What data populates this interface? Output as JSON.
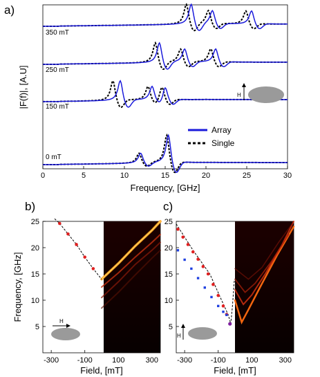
{
  "panel_a": {
    "label": "a)",
    "xlabel": "Frequency, [GHz]",
    "ylabel": "|F(f)|, [A.U]",
    "xticks": [
      "0",
      "5",
      "10",
      "15",
      "20",
      "25",
      "30"
    ],
    "traces": [
      {
        "field": "350 mT",
        "peaks_array": [
          18.2,
          20.8,
          25.6
        ],
        "peaks_single": [
          17.6,
          20.3,
          24.9
        ]
      },
      {
        "field": "250 mT",
        "peaks_array": [
          14.3,
          17.4,
          21.2
        ],
        "peaks_single": [
          13.8,
          16.9,
          20.6
        ]
      },
      {
        "field": "150 mT",
        "peaks_array": [
          9.5,
          13.4,
          15.0
        ],
        "peaks_single": [
          8.6,
          12.9,
          14.6
        ]
      },
      {
        "field": "0 mT",
        "peaks_array": [
          12.0,
          15.4
        ],
        "peaks_single": [
          11.8,
          15.2
        ]
      }
    ],
    "legend": {
      "array": "Array",
      "single": "Single"
    },
    "inset": {
      "field_label": "H",
      "field_direction": "up"
    },
    "colors": {
      "array": "#1a1adb",
      "single": "#000000"
    }
  },
  "panel_b": {
    "label": "b)",
    "ylabel": "Frequency, [GHz]",
    "xlabel": "Field, [mT]",
    "xticks": [
      "-300",
      "-100",
      "100",
      "300"
    ],
    "yticks": [
      "5",
      "10",
      "15",
      "20",
      "25"
    ],
    "inset": {
      "field_label": "H",
      "field_direction": "right"
    }
  },
  "panel_c": {
    "label": "c)",
    "xlabel": "Field, [mT]",
    "xticks": [
      "-300",
      "-100",
      "100",
      "300"
    ],
    "yticks": [
      "5",
      "10",
      "15",
      "20",
      "25"
    ],
    "inset": {
      "field_label": "H",
      "field_direction": "up"
    }
  },
  "chart_data": [
    {
      "type": "line",
      "xlabel": "Frequency, [GHz]",
      "ylabel": "|F(f)|, [A.U]",
      "xlim": [
        0,
        30
      ],
      "series": [
        {
          "name": "Array"
        },
        {
          "name": "Single"
        }
      ]
    },
    {
      "type": "scatter",
      "xlabel": "Field, [mT]",
      "ylabel": "Frequency, [GHz]",
      "xlim": [
        -350,
        350
      ],
      "ylim": [
        0,
        25
      ],
      "points": [
        {
          "x": -250,
          "y": 24.6
        },
        {
          "x": -200,
          "y": 22.6
        },
        {
          "x": -150,
          "y": 20.6
        },
        {
          "x": -100,
          "y": 18.2
        },
        {
          "x": -50,
          "y": 16.0
        }
      ]
    },
    {
      "type": "scatter",
      "xlabel": "Field, [mT]",
      "ylabel": "Frequency, [GHz]",
      "xlim": [
        -350,
        350
      ],
      "ylim": [
        0,
        25
      ],
      "series": [
        {
          "color": "#e02020",
          "x": [
            -340,
            -310,
            -280,
            -250,
            -220,
            -190,
            -160,
            -130,
            -100,
            -70,
            -50
          ],
          "y": [
            23.5,
            22.0,
            20.6,
            19.2,
            17.8,
            16.4,
            15.0,
            13.0,
            10.9,
            8.9,
            7.3
          ]
        },
        {
          "color": "#2040e0",
          "x": [
            -340,
            -300,
            -260,
            -220,
            -180,
            -140,
            -100,
            -70,
            -50,
            -30
          ],
          "y": [
            19.5,
            17.7,
            16.0,
            14.2,
            12.4,
            10.6,
            8.9,
            7.8,
            7.2,
            5.5
          ]
        }
      ]
    }
  ]
}
